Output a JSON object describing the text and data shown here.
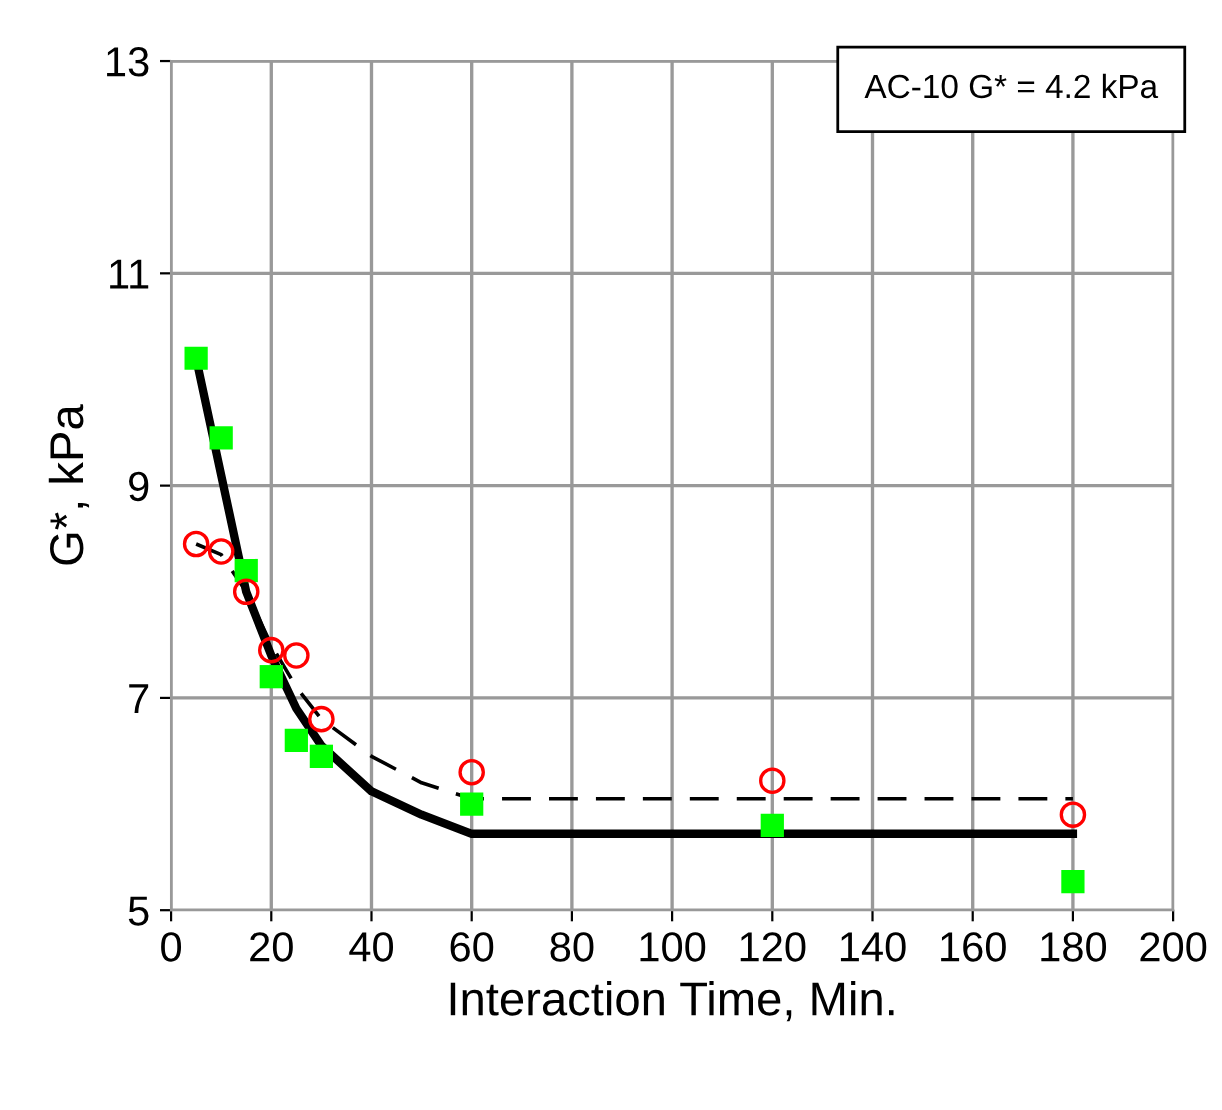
{
  "chart_data": {
    "type": "scatter",
    "xlabel": "Interaction Time, Min.",
    "ylabel": "G*, kPa",
    "annotations": [
      "AC-10 G* = 4.2 kPa"
    ],
    "xlim": [
      0,
      200
    ],
    "xticks": [
      0,
      20,
      40,
      60,
      80,
      100,
      120,
      140,
      160,
      180,
      200
    ],
    "ylim": [
      5,
      13
    ],
    "yticks": [
      5,
      7,
      9,
      11,
      13
    ],
    "grid": true,
    "series": [
      {
        "marker": "square",
        "color": "#00ff00",
        "x": [
          5,
          10,
          15,
          20,
          25,
          30,
          60,
          120,
          180
        ],
        "values": [
          10.2,
          9.45,
          8.2,
          7.2,
          6.6,
          6.45,
          6.0,
          5.8,
          5.27
        ]
      },
      {
        "marker": "circle",
        "color": "#ff0000",
        "x": [
          5,
          10,
          15,
          20,
          25,
          30,
          60,
          120,
          180
        ],
        "values": [
          8.45,
          8.38,
          8.0,
          7.45,
          7.4,
          6.8,
          6.3,
          6.22,
          5.9
        ]
      },
      {
        "type": "line",
        "marker": "none",
        "line_style": "solid",
        "color": "#000000",
        "x": [
          5,
          10,
          15,
          20,
          25,
          30,
          40,
          50,
          60,
          180
        ],
        "values": [
          10.2,
          9.1,
          8.0,
          7.4,
          6.9,
          6.55,
          6.12,
          5.9,
          5.72,
          5.72
        ]
      },
      {
        "type": "line",
        "marker": "none",
        "line_style": "dashed",
        "color": "#000000",
        "x": [
          5,
          10,
          15,
          20,
          25,
          30,
          40,
          50,
          60,
          180
        ],
        "values": [
          8.45,
          8.35,
          8.0,
          7.5,
          7.1,
          6.8,
          6.45,
          6.2,
          6.05,
          6.05
        ]
      }
    ]
  }
}
